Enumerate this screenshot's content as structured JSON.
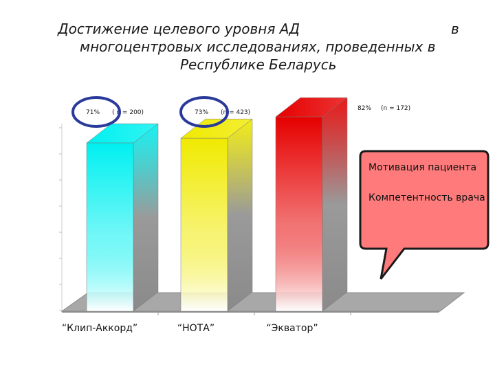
{
  "title": {
    "line1": "Достижение целевого уровня АД",
    "line1_tail": "в",
    "line2": "многоцентровых исследованиях, проведенных в",
    "line3": "Республике Беларусь"
  },
  "chart_data": {
    "type": "bar",
    "categories": [
      "“Клип-Аккорд”",
      "“НОТА”",
      "“Экватор”"
    ],
    "values": [
      71,
      73,
      82
    ],
    "value_labels": [
      "71%",
      "73%",
      "82%"
    ],
    "sample_labels": [
      "( n = 200)",
      "(n = 423)",
      "(n = 172)"
    ],
    "colors": [
      "#00f0f0",
      "#f0ea00",
      "#e60000"
    ],
    "circle_color": "#2a3a9a",
    "ylim": [
      0,
      100
    ],
    "grid": false,
    "style": "3d"
  },
  "callout": {
    "fill": "#ff7b7b",
    "border": "#1a1a1a",
    "lines": [
      "Мотивация пациента",
      "Компетентность врача"
    ]
  }
}
